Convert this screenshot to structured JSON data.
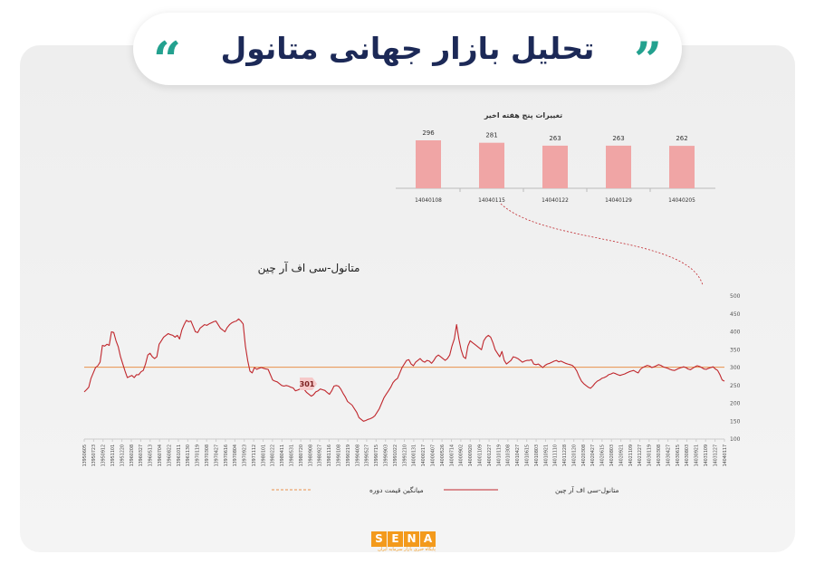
{
  "header": {
    "title": "تحلیل بازار جهانی متانول",
    "quote_left": "“",
    "quote_right": "”"
  },
  "colors": {
    "title": "#1c2957",
    "accent": "#23a18f",
    "line": "#c0272d",
    "avg": "#e8904a",
    "bar": "#f0a5a5",
    "logo": "#f39a1c"
  },
  "chart_data": [
    {
      "type": "bar",
      "title": "تغییرات پنج هفته اخیر",
      "categories": [
        "14040108",
        "14040115",
        "14040122",
        "14040129",
        "14040205"
      ],
      "values": [
        296,
        281,
        263,
        263,
        262
      ]
    },
    {
      "type": "line",
      "title": "متانول-سی اف آر چین",
      "xlabel": "",
      "ylabel": "",
      "ylim": [
        100,
        500
      ],
      "yticks": [
        "500",
        "450",
        "400",
        "350",
        "300",
        "250",
        "200",
        "150",
        "100"
      ],
      "x_tick_labels": [
        "13950605",
        "13950723",
        "13950912",
        "13951101",
        "13951220",
        "13960208",
        "13960327",
        "13960513",
        "13960704",
        "13960822",
        "13961011",
        "13961130",
        "13970119",
        "13970308",
        "13970427",
        "13970616",
        "13970804",
        "13970923",
        "13971112",
        "13980101",
        "13980222",
        "13980411",
        "13980531",
        "13980720",
        "13980908",
        "13980927",
        "13981116",
        "13990108",
        "13990219",
        "13990408",
        "13990527",
        "13990715",
        "13990903",
        "13991022",
        "13991210",
        "14000131",
        "14000217",
        "14000407",
        "14000526",
        "14000714",
        "14000902",
        "14000920",
        "14001109",
        "14001227",
        "14010119",
        "14010308",
        "14010427",
        "14010615",
        "14010803",
        "14010921",
        "14011110",
        "14011228",
        "14020120",
        "14020308",
        "14020427",
        "14020615",
        "14020803",
        "14020921",
        "14021109",
        "14021227",
        "14030119",
        "14030308",
        "14030427",
        "14030615",
        "14030803",
        "14030921",
        "14031109",
        "14031227",
        "14040117"
      ],
      "series": [
        {
          "name": "متانول-سی اف آر چین",
          "values": [
            232,
            238,
            245,
            270,
            285,
            300,
            305,
            315,
            362,
            360,
            365,
            362,
            400,
            398,
            375,
            358,
            330,
            310,
            290,
            272,
            275,
            278,
            272,
            280,
            280,
            288,
            292,
            310,
            335,
            340,
            330,
            325,
            330,
            365,
            375,
            385,
            390,
            395,
            392,
            390,
            385,
            390,
            380,
            405,
            420,
            432,
            428,
            430,
            415,
            400,
            398,
            410,
            415,
            420,
            418,
            422,
            425,
            428,
            430,
            420,
            410,
            405,
            400,
            412,
            420,
            425,
            428,
            430,
            436,
            430,
            422,
            360,
            320,
            290,
            285,
            300,
            295,
            298,
            300,
            298,
            296,
            295,
            280,
            265,
            262,
            260,
            255,
            250,
            248,
            250,
            248,
            245,
            243,
            235,
            237,
            240,
            240,
            238,
            230,
            225,
            220,
            224,
            232,
            235,
            240,
            238,
            236,
            230,
            225,
            235,
            248,
            250,
            248,
            240,
            228,
            218,
            205,
            200,
            195,
            185,
            175,
            160,
            155,
            150,
            152,
            155,
            157,
            160,
            165,
            175,
            185,
            200,
            215,
            225,
            235,
            245,
            258,
            265,
            270,
            285,
            300,
            310,
            320,
            322,
            310,
            305,
            315,
            320,
            325,
            318,
            315,
            320,
            318,
            312,
            320,
            330,
            335,
            330,
            325,
            320,
            325,
            335,
            360,
            380,
            420,
            380,
            350,
            330,
            325,
            360,
            375,
            370,
            365,
            360,
            355,
            350,
            375,
            385,
            390,
            385,
            370,
            350,
            340,
            330,
            345,
            320,
            310,
            315,
            320,
            330,
            328,
            325,
            320,
            315,
            318,
            320,
            320,
            322,
            310,
            308,
            310,
            305,
            300,
            306,
            310,
            312,
            315,
            318,
            320,
            316,
            318,
            315,
            312,
            310,
            308,
            306,
            300,
            290,
            275,
            262,
            255,
            250,
            245,
            242,
            248,
            256,
            262,
            265,
            270,
            272,
            275,
            280,
            282,
            285,
            283,
            280,
            278,
            280,
            282,
            285,
            288,
            290,
            292,
            288,
            285,
            295,
            300,
            303,
            306,
            304,
            300,
            302,
            305,
            308,
            306,
            302,
            300,
            298,
            295,
            293,
            292,
            295,
            298,
            300,
            302,
            300,
            296,
            294,
            298,
            302,
            305,
            303,
            300,
            296,
            295,
            298,
            300,
            302,
            296,
            292,
            280,
            265,
            262
          ]
        },
        {
          "name": "میانگین قیمت دوره",
          "values": [
            301
          ]
        }
      ],
      "annotation": "301",
      "legend": [
        "متانول-سی اف آر چین",
        "میانگین قیمت دوره"
      ],
      "legend_position": "bottom"
    }
  ],
  "logo": {
    "letters": [
      "S",
      "E",
      "N",
      "A"
    ],
    "tagline": "پایگاه خبری بازار سرمایه ایران"
  }
}
